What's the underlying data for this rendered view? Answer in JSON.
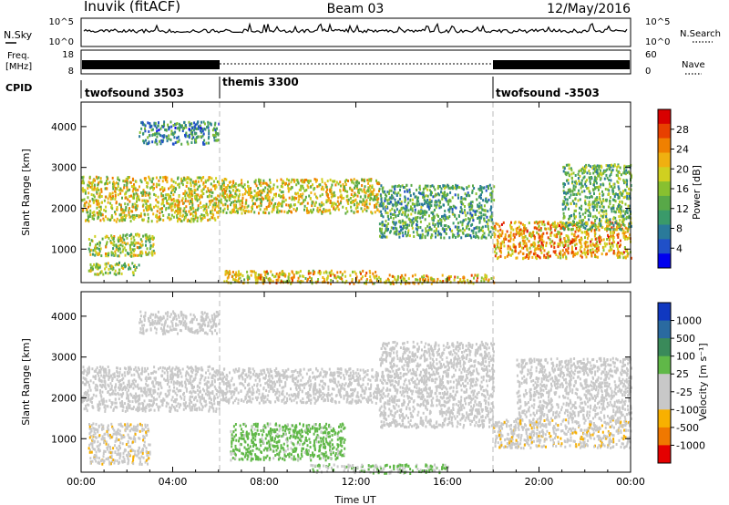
{
  "header": {
    "station": "Inuvik (fitACF)",
    "beam": "Beam 03",
    "date": "12/May/2016"
  },
  "status": {
    "nsky_label": "N.Sky",
    "nsearch_label": "N.Search",
    "freq_label_1": "Freq.",
    "freq_label_2": "[MHz]",
    "nave_label": "Nave",
    "cpid_label": "CPID",
    "left_ticks": [
      "10^5",
      "10^0",
      "18",
      "8"
    ],
    "right_ticks": [
      "10^5",
      "10^0",
      "60",
      "0"
    ]
  },
  "cpid_segments": [
    {
      "label": "twofsound 3503",
      "start_hr": 0,
      "end_hr": 6
    },
    {
      "label": "themis 3300",
      "start_hr": 6,
      "end_hr": 18
    },
    {
      "label": "twofsound -3503",
      "start_hr": 18,
      "end_hr": 24
    }
  ],
  "colorbars": {
    "power": {
      "label": "Power [dB]",
      "ticks": [
        "28",
        "24",
        "20",
        "16",
        "12",
        "8",
        "4"
      ]
    },
    "velocity": {
      "label": "Velocity [m s⁻¹]",
      "ticks": [
        "1000",
        "500",
        "100",
        "25",
        "-25",
        "-100",
        "-500",
        "-1000"
      ]
    }
  },
  "chart_data": [
    {
      "type": "heatmap",
      "name": "power",
      "xlabel": "",
      "ylabel": "Slant Range [km]",
      "xlim": [
        0,
        24
      ],
      "ylim": [
        180,
        4600
      ],
      "x_tick_labels": [
        "00:00",
        "04:00",
        "08:00",
        "12:00",
        "16:00",
        "20:00",
        "00:00"
      ],
      "x_ticks_hr": [
        0,
        4,
        8,
        12,
        16,
        20,
        24
      ],
      "y_ticks": [
        1000,
        2000,
        3000,
        4000
      ],
      "colorbar_range_db": [
        0,
        30
      ],
      "scatter_bands": [
        {
          "t0": 0.0,
          "t1": 6.0,
          "r0": 1700,
          "r1": 2800,
          "power_db": 18
        },
        {
          "t0": 0.3,
          "t1": 3.2,
          "r0": 850,
          "r1": 1400,
          "power_db": 16
        },
        {
          "t0": 0.3,
          "t1": 2.5,
          "r0": 400,
          "r1": 700,
          "power_db": 14
        },
        {
          "t0": 2.5,
          "t1": 6.0,
          "r0": 3600,
          "r1": 4150,
          "power_db": 8
        },
        {
          "t0": 6.0,
          "t1": 13.0,
          "r0": 1900,
          "r1": 2750,
          "power_db": 18
        },
        {
          "t0": 6.2,
          "t1": 13.0,
          "r0": 180,
          "r1": 500,
          "power_db": 20
        },
        {
          "t0": 13.0,
          "t1": 18.0,
          "r0": 1300,
          "r1": 2600,
          "power_db": 10
        },
        {
          "t0": 13.0,
          "t1": 18.0,
          "r0": 180,
          "r1": 400,
          "power_db": 20
        },
        {
          "t0": 18.0,
          "t1": 24.0,
          "r0": 800,
          "r1": 1700,
          "power_db": 22
        },
        {
          "t0": 21.0,
          "t1": 24.0,
          "r0": 1500,
          "r1": 3100,
          "power_db": 12
        }
      ]
    },
    {
      "type": "heatmap",
      "name": "velocity",
      "xlabel": "Time UT",
      "ylabel": "Slant Range [km]",
      "xlim": [
        0,
        24
      ],
      "ylim": [
        180,
        4600
      ],
      "x_tick_labels": [
        "00:00",
        "04:00",
        "08:00",
        "12:00",
        "16:00",
        "20:00",
        "00:00"
      ],
      "x_ticks_hr": [
        0,
        4,
        8,
        12,
        16,
        20,
        24
      ],
      "y_ticks": [
        1000,
        2000,
        3000,
        4000
      ],
      "colorbar_range_ms": [
        -1000,
        1000
      ],
      "scatter_bands": [
        {
          "t0": 0.0,
          "t1": 6.0,
          "r0": 1700,
          "r1": 2800,
          "velocity_ms": 0
        },
        {
          "t0": 0.3,
          "t1": 3.0,
          "r0": 400,
          "r1": 1400,
          "velocity_ms": -300
        },
        {
          "t0": 2.5,
          "t1": 6.0,
          "r0": 3600,
          "r1": 4150,
          "velocity_ms": 0
        },
        {
          "t0": 6.0,
          "t1": 13.0,
          "r0": 1900,
          "r1": 2750,
          "velocity_ms": 0
        },
        {
          "t0": 6.5,
          "t1": 11.5,
          "r0": 500,
          "r1": 1400,
          "velocity_ms": 200
        },
        {
          "t0": 10.0,
          "t1": 16.0,
          "r0": 180,
          "r1": 400,
          "velocity_ms": 120
        },
        {
          "t0": 13.0,
          "t1": 18.0,
          "r0": 1300,
          "r1": 3400,
          "velocity_ms": 0
        },
        {
          "t0": 18.0,
          "t1": 24.0,
          "r0": 800,
          "r1": 1500,
          "velocity_ms": -300
        },
        {
          "t0": 19.0,
          "t1": 24.0,
          "r0": 1500,
          "r1": 3000,
          "velocity_ms": 0
        }
      ]
    }
  ],
  "colors": {
    "power_scale": [
      "#0000ee",
      "#2050c8",
      "#2a7a9a",
      "#3a9a6a",
      "#58a848",
      "#88c030",
      "#d0d020",
      "#f0b010",
      "#f08000",
      "#e84000",
      "#d80000"
    ],
    "velocity_scale": [
      "#e40000",
      "#f07800",
      "#f8b000",
      "#c8c8c8",
      "#c8c8c8",
      "#60b848",
      "#3a8a5a",
      "#2a6aa0",
      "#1038c0"
    ],
    "gray": "#c8c8c8"
  }
}
